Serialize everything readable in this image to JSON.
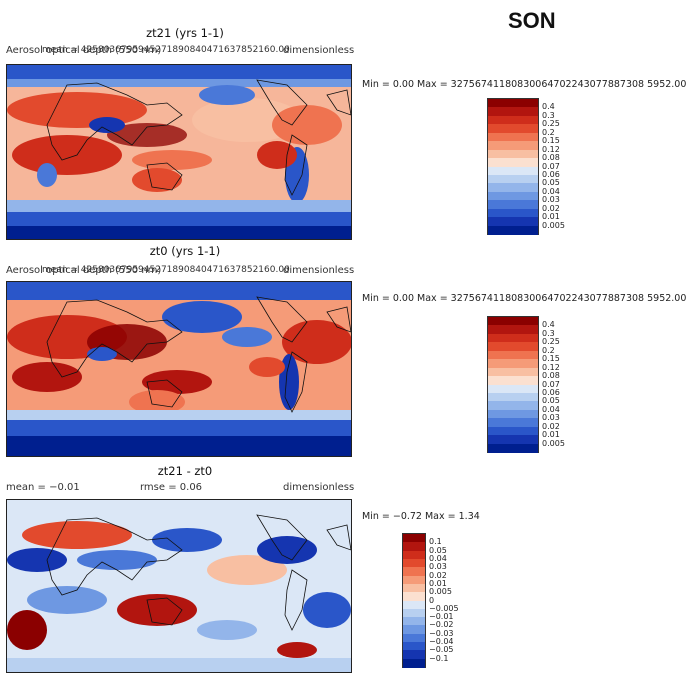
{
  "season": "SON",
  "panels": [
    {
      "title": "zt21 (yrs 1-1)",
      "top_left": "Aerosol optical depth (550 nm)",
      "top_center": "mean = 4258036795945271890840471637852160.00",
      "top_right": "dimensionless",
      "minmax": "Min =    0.00 Max = 32756741180830064702243077887308 5952.00",
      "colorbar_labels": [
        "0.4",
        "0.3",
        "0.25",
        "0.2",
        "0.15",
        "0.12",
        "0.08",
        "0.07",
        "0.06",
        "0.05",
        "0.04",
        "0.03",
        "0.02",
        "0.01",
        "0.005"
      ],
      "colorbar_colors": [
        "#8b0000",
        "#b2150f",
        "#cf2d1b",
        "#e24a2d",
        "#ef7350",
        "#f59b78",
        "#f8bfa2",
        "#fbe0d0",
        "#dbe7f6",
        "#b8d0f0",
        "#93b5ea",
        "#6e98e2",
        "#4a78d8",
        "#2a56c9",
        "#1535b0",
        "#001f8f"
      ]
    },
    {
      "title": "zt0 (yrs 1-1)",
      "top_left": "Aerosol optical depth (550 nm)",
      "top_center": "mean = 4258036795945271890840471637852160.00",
      "top_right": "dimensionless",
      "minmax": "Min =    0.00 Max = 32756741180830064702243077887308 5952.00",
      "colorbar_labels": [
        "0.4",
        "0.3",
        "0.25",
        "0.2",
        "0.15",
        "0.12",
        "0.08",
        "0.07",
        "0.06",
        "0.05",
        "0.04",
        "0.03",
        "0.02",
        "0.01",
        "0.005"
      ],
      "colorbar_colors": [
        "#8b0000",
        "#b2150f",
        "#cf2d1b",
        "#e24a2d",
        "#ef7350",
        "#f59b78",
        "#f8bfa2",
        "#fbe0d0",
        "#dbe7f6",
        "#b8d0f0",
        "#93b5ea",
        "#6e98e2",
        "#4a78d8",
        "#2a56c9",
        "#1535b0",
        "#001f8f"
      ]
    },
    {
      "title": "zt21 - zt0",
      "mean": "mean =   −0.01",
      "rmse": "rmse =    0.06",
      "top_right": "dimensionless",
      "minmax": "Min =  −0.72  Max =    1.34",
      "colorbar_labels": [
        "0.1",
        "0.05",
        "0.04",
        "0.03",
        "0.02",
        "0.01",
        "0.005",
        "0",
        "−0.005",
        "−0.01",
        "−0.02",
        "−0.03",
        "−0.04",
        "−0.05",
        "−0.1"
      ],
      "colorbar_colors": [
        "#8b0000",
        "#b2150f",
        "#cf2d1b",
        "#e24a2d",
        "#ef7350",
        "#f59b78",
        "#f8bfa2",
        "#fbe0d0",
        "#dbe7f6",
        "#b8d0f0",
        "#93b5ea",
        "#6e98e2",
        "#4a78d8",
        "#2a56c9",
        "#1535b0",
        "#001f8f"
      ]
    }
  ]
}
